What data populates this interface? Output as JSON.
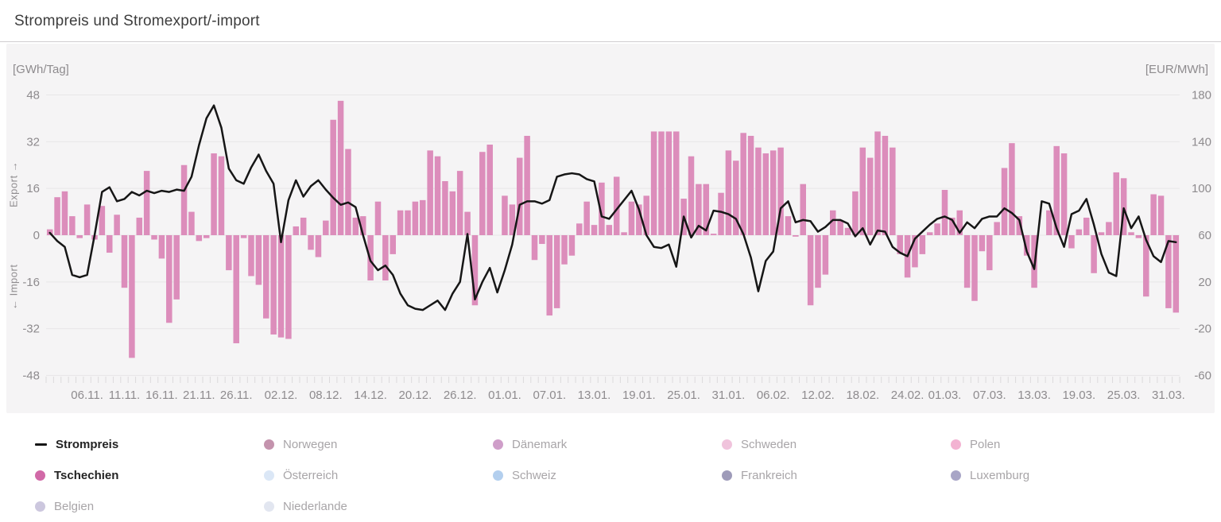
{
  "title": "Strompreis und Stromexport/-import",
  "axes": {
    "left_unit": "[GWh/Tag]",
    "right_unit": "[EUR/MWh]",
    "left_ticks": [
      48,
      32,
      16,
      0,
      -16,
      -32,
      -48
    ],
    "right_ticks": [
      180,
      140,
      100,
      60,
      20,
      -20,
      -60
    ],
    "export_label": "Export →",
    "import_label": "← Import"
  },
  "x_axis": {
    "tick_labels": [
      {
        "label": "06.11.",
        "index": 5
      },
      {
        "label": "11.11.",
        "index": 10
      },
      {
        "label": "16.11.",
        "index": 15
      },
      {
        "label": "21.11.",
        "index": 20
      },
      {
        "label": "26.11.",
        "index": 25
      },
      {
        "label": "02.12.",
        "index": 31
      },
      {
        "label": "08.12.",
        "index": 37
      },
      {
        "label": "14.12.",
        "index": 43
      },
      {
        "label": "20.12.",
        "index": 49
      },
      {
        "label": "26.12.",
        "index": 55
      },
      {
        "label": "01.01.",
        "index": 61
      },
      {
        "label": "07.01.",
        "index": 67
      },
      {
        "label": "13.01.",
        "index": 73
      },
      {
        "label": "19.01.",
        "index": 79
      },
      {
        "label": "25.01.",
        "index": 85
      },
      {
        "label": "31.01.",
        "index": 91
      },
      {
        "label": "06.02.",
        "index": 97
      },
      {
        "label": "12.02.",
        "index": 103
      },
      {
        "label": "18.02.",
        "index": 109
      },
      {
        "label": "24.02.",
        "index": 115
      },
      {
        "label": "01.03.",
        "index": 120
      },
      {
        "label": "07.03.",
        "index": 126
      },
      {
        "label": "13.03.",
        "index": 132
      },
      {
        "label": "19.03.",
        "index": 138
      },
      {
        "label": "25.03.",
        "index": 144
      },
      {
        "label": "31.03.",
        "index": 150
      }
    ]
  },
  "chart_data": {
    "type": "mixed",
    "start_date": "01.11.",
    "end_date": "01.04.",
    "days": 152,
    "left_ylim": [
      -48,
      48
    ],
    "right_ylim": [
      -60,
      180
    ],
    "grid": true,
    "series": [
      {
        "name": "Tschechien",
        "type": "bar",
        "unit": "GWh/Tag",
        "axis": "left",
        "color": "#dc8dbb",
        "values": [
          2,
          13,
          15,
          6.5,
          -1,
          10.5,
          -1.5,
          10,
          -6,
          7,
          -18,
          -42,
          6,
          22,
          -1.5,
          -8,
          -30,
          -22,
          24,
          8,
          -2,
          -1,
          28,
          27,
          -12,
          -37,
          -1,
          -14,
          -17,
          -28.5,
          -34,
          -35,
          -35.5,
          3,
          6,
          -5,
          -7.5,
          5,
          39.5,
          46,
          29.5,
          6,
          6.5,
          -15.5,
          11.5,
          -15.5,
          -6.5,
          8.5,
          8.5,
          11.5,
          12,
          29,
          27,
          18.5,
          15,
          22,
          8,
          -24,
          28.5,
          31,
          0,
          13.5,
          10.5,
          26.5,
          34,
          -8.5,
          -3,
          -27.5,
          -25,
          -10,
          -7,
          4,
          11.5,
          3.5,
          18,
          3.5,
          20,
          1,
          11.5,
          10.5,
          13.5,
          35.5,
          35.5,
          35.5,
          35.5,
          12.5,
          27,
          17.5,
          17.5,
          0.5,
          14.5,
          29,
          25.5,
          35,
          34,
          30,
          28,
          29,
          30,
          6.5,
          -0.5,
          17.5,
          -24,
          -18,
          -13.5,
          8.5,
          5,
          2.5,
          15,
          30,
          26.5,
          35.5,
          34,
          30,
          -6.5,
          -14.5,
          -11,
          -6.5,
          1,
          4,
          15.5,
          6,
          8.5,
          -18,
          -22.5,
          -5.5,
          -12,
          4.5,
          23,
          31.5,
          6.5,
          -7,
          -18,
          0,
          8.5,
          30.5,
          28,
          -4.5,
          2,
          6,
          -13,
          1,
          4.5,
          21.5,
          19.5,
          1,
          -1,
          -21,
          14,
          13.5,
          -25,
          -26.5
        ]
      },
      {
        "name": "Strompreis",
        "type": "line",
        "unit": "EUR/MWh",
        "axis": "right",
        "color": "#161616",
        "values": [
          62,
          55,
          50,
          26,
          24,
          26,
          60,
          97,
          101,
          89,
          91,
          97,
          94,
          98,
          96,
          98,
          97,
          99,
          98,
          110,
          137,
          160,
          171,
          152,
          117,
          107,
          104,
          118,
          129,
          115,
          104,
          54,
          90,
          107,
          93,
          102,
          107,
          99,
          92,
          86,
          88,
          84,
          60,
          38,
          30,
          34,
          26,
          10,
          0,
          -3,
          -4,
          0,
          4,
          -4,
          10,
          20,
          61,
          5,
          20,
          32,
          11,
          30,
          52,
          86,
          89,
          89,
          87,
          90,
          110,
          112,
          113,
          112,
          108,
          106,
          76,
          74,
          82,
          90,
          98,
          82,
          60,
          50,
          49,
          52,
          33,
          76,
          58,
          68,
          64,
          81,
          80,
          78,
          74,
          61,
          41,
          12,
          38,
          46,
          83,
          89,
          71,
          73,
          72,
          63,
          67,
          73,
          73,
          70,
          59,
          66,
          52,
          64,
          63,
          50,
          45,
          42,
          57,
          63,
          69,
          74,
          76,
          73,
          62,
          71,
          66,
          74,
          76,
          76,
          83,
          79,
          73,
          46,
          31,
          89,
          87,
          66,
          50,
          78,
          81,
          91,
          69,
          44,
          28,
          25,
          83,
          66,
          76,
          56,
          42,
          37,
          55,
          54
        ]
      }
    ]
  },
  "legend": {
    "items": [
      {
        "id": "strompreis",
        "label": "Strompreis",
        "marker": "line",
        "color": "#161616",
        "active": true
      },
      {
        "id": "norwegen",
        "label": "Norwegen",
        "marker": "dot",
        "color": "#c493ad",
        "active": false
      },
      {
        "id": "daenemark",
        "label": "Dänemark",
        "marker": "dot",
        "color": "#cf9ec9",
        "active": false
      },
      {
        "id": "schweden",
        "label": "Schweden",
        "marker": "dot",
        "color": "#f0c3dc",
        "active": false
      },
      {
        "id": "polen",
        "label": "Polen",
        "marker": "dot",
        "color": "#f3b3d2",
        "active": false
      },
      {
        "id": "tschechien",
        "label": "Tschechien",
        "marker": "dot",
        "color": "#d169a7",
        "active": true
      },
      {
        "id": "oesterreich",
        "label": "Österreich",
        "marker": "dot",
        "color": "#dbe7f6",
        "active": false
      },
      {
        "id": "schweiz",
        "label": "Schweiz",
        "marker": "dot",
        "color": "#b3cfee",
        "active": false
      },
      {
        "id": "frankreich",
        "label": "Frankreich",
        "marker": "dot",
        "color": "#9e9bb9",
        "active": false
      },
      {
        "id": "luxemburg",
        "label": "Luxemburg",
        "marker": "dot",
        "color": "#a8a5c6",
        "active": false
      },
      {
        "id": "belgien",
        "label": "Belgien",
        "marker": "dot",
        "color": "#ccc7de",
        "active": false
      },
      {
        "id": "niederlande",
        "label": "Niederlande",
        "marker": "dot",
        "color": "#e2e6f0",
        "active": false
      }
    ]
  },
  "style": {
    "plot_bg": "#f5f4f5",
    "gridline_color": "#e8e6e8",
    "day_tick_color": "#dcdadc",
    "axis_text_color": "#8e8b8e"
  }
}
